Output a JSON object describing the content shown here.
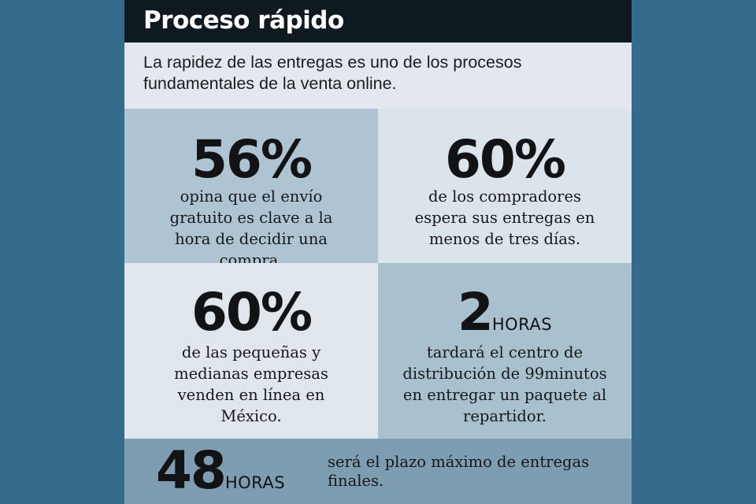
{
  "header": {
    "title": "Proceso rápido"
  },
  "intro": {
    "text": "La rapidez de las entregas es uno de los procesos fundamentales de la venta online."
  },
  "stats": [
    {
      "value": "56%",
      "unit": "",
      "description": "opina que el envío gratuito es clave a la hora de decidir una compra."
    },
    {
      "value": "60%",
      "unit": "",
      "description": "de los compradores espera sus entregas en menos de tres días."
    },
    {
      "value": "60%",
      "unit": "",
      "description": "de las pequeñas y medianas empresas venden en línea en México."
    },
    {
      "value": "2",
      "unit": "HORAS",
      "description": "tardará el centro de distribución de 99minutos en entregar un paquete al repartidor."
    }
  ],
  "bottom": {
    "value": "48",
    "unit": "HORAS",
    "description": "será el plazo máximo de entregas finales."
  },
  "colors": {
    "page_background": "#346a8a",
    "header_background": "#0e1a1f",
    "cell_dark": "#aec4d2",
    "cell_light": "#dbe4eb",
    "bottom_band": "#7e9db0"
  }
}
